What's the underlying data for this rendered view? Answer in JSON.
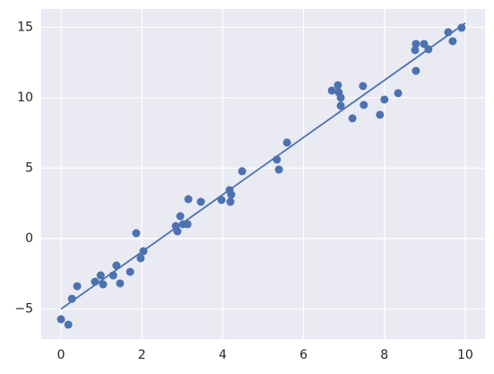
{
  "chart_data": {
    "type": "scatter",
    "xlim": [
      -0.49,
      10.49
    ],
    "ylim": [
      -7.13,
      16.3
    ],
    "xticks": [
      0,
      2,
      4,
      6,
      8,
      10
    ],
    "yticks": [
      {
        "value": -5,
        "label": "−5"
      },
      0,
      5,
      10,
      15
    ],
    "grid": true,
    "series": [
      {
        "type": "scatter",
        "color": "#4c72b0",
        "x": [
          0.0,
          0.18,
          0.27,
          0.4,
          0.84,
          0.98,
          1.04,
          1.29,
          1.37,
          1.46,
          1.71,
          1.86,
          1.97,
          2.04,
          2.84,
          2.88,
          2.95,
          3.02,
          3.13,
          3.15,
          3.46,
          3.97,
          4.17,
          4.19,
          4.21,
          4.48,
          5.34,
          5.39,
          5.59,
          6.7,
          6.85,
          6.87,
          6.92,
          6.92,
          7.21,
          7.47,
          7.49,
          7.89,
          8.0,
          8.34,
          8.76,
          8.78,
          8.78,
          8.98,
          9.09,
          9.58,
          9.69,
          9.91
        ],
        "values": [
          -5.73,
          -6.11,
          -4.27,
          -3.38,
          -3.06,
          -2.61,
          -3.25,
          -2.61,
          -1.91,
          -3.18,
          -2.36,
          0.38,
          -1.4,
          -0.89,
          0.89,
          0.51,
          1.59,
          1.02,
          1.02,
          2.8,
          2.61,
          2.74,
          3.44,
          2.61,
          3.12,
          4.78,
          5.61,
          4.9,
          6.82,
          10.51,
          10.89,
          10.38,
          10.0,
          9.43,
          8.54,
          10.83,
          9.49,
          8.79,
          9.87,
          10.32,
          13.38,
          13.82,
          11.91,
          13.82,
          13.44,
          14.65,
          14.01,
          14.97
        ]
      },
      {
        "type": "line",
        "color": "#4c72b0",
        "x": [
          0,
          10
        ],
        "values": [
          -5.0,
          15.3
        ]
      }
    ]
  }
}
